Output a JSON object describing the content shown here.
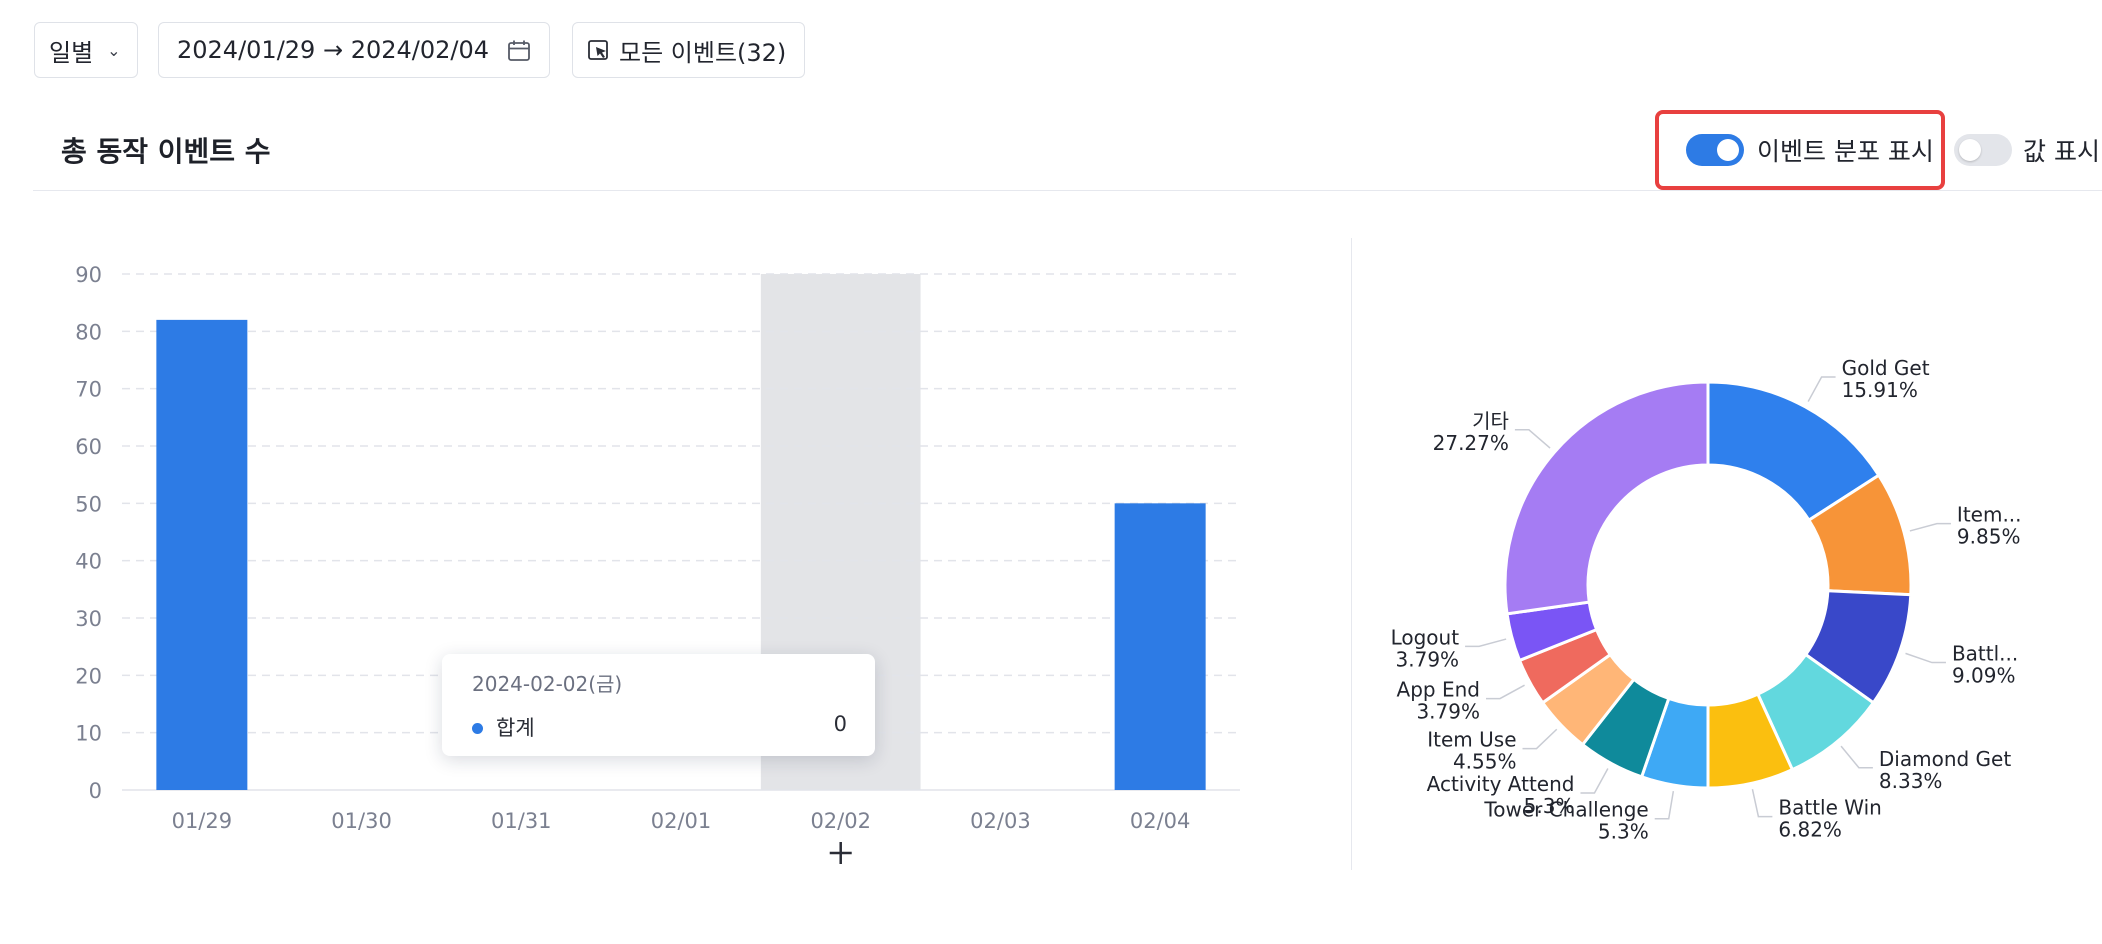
{
  "toolbar": {
    "period_label": "일별",
    "date_range": "2024/01/29 → 2024/02/04",
    "events_label": "모든 이벤트(32)"
  },
  "header": {
    "title": "총 동작 이벤트 수",
    "toggle_distribution_label": "이벤트 분포 표시",
    "toggle_distribution_on": true,
    "toggle_values_label": "값 표시",
    "toggle_values_on": false
  },
  "tooltip": {
    "date": "2024-02-02(금)",
    "series_name": "합계",
    "value": "0"
  },
  "colors": {
    "accent": "#2d7be5",
    "highlight_border": "#e8403f"
  },
  "chart_data": [
    {
      "type": "bar",
      "categories": [
        "01/29",
        "01/30",
        "01/31",
        "02/01",
        "02/02",
        "02/03",
        "02/04"
      ],
      "series": [
        {
          "values": [
            82,
            0,
            0,
            0,
            0,
            0,
            50
          ],
          "color": "#2d7be5"
        }
      ],
      "ylim": [
        0,
        90
      ],
      "yticks": [
        0,
        10,
        20,
        30,
        40,
        50,
        60,
        70,
        80,
        90
      ],
      "grid": true,
      "highlighted_category": "02/02"
    },
    {
      "type": "pie",
      "slices": [
        {
          "name": "Gold Get",
          "pct_label": "15.91%",
          "value": 15.91,
          "color": "#2f80ed"
        },
        {
          "name": "Item...",
          "pct_label": "9.85%",
          "value": 9.85,
          "color": "#f79438"
        },
        {
          "name": "Battl...",
          "pct_label": "9.09%",
          "value": 9.09,
          "color": "#3948c9"
        },
        {
          "name": "Diamond Get",
          "pct_label": "8.33%",
          "value": 8.33,
          "color": "#62d8de"
        },
        {
          "name": "Battle Win",
          "pct_label": "6.82%",
          "value": 6.82,
          "color": "#fbbf0f"
        },
        {
          "name": "Tower Challenge",
          "pct_label": "5.3%",
          "value": 5.3,
          "color": "#3ea9f5"
        },
        {
          "name": "Activity Attend",
          "pct_label": "5.3%",
          "value": 5.3,
          "color": "#0f8a9b"
        },
        {
          "name": "Item Use",
          "pct_label": "4.55%",
          "value": 4.55,
          "color": "#ffb677"
        },
        {
          "name": "App End",
          "pct_label": "3.79%",
          "value": 3.79,
          "color": "#ef6a5e"
        },
        {
          "name": "Logout",
          "pct_label": "3.79%",
          "value": 3.79,
          "color": "#7a55f5"
        },
        {
          "name": "기타",
          "pct_label": "27.27%",
          "value": 27.27,
          "color": "#a57cf3"
        }
      ]
    }
  ]
}
